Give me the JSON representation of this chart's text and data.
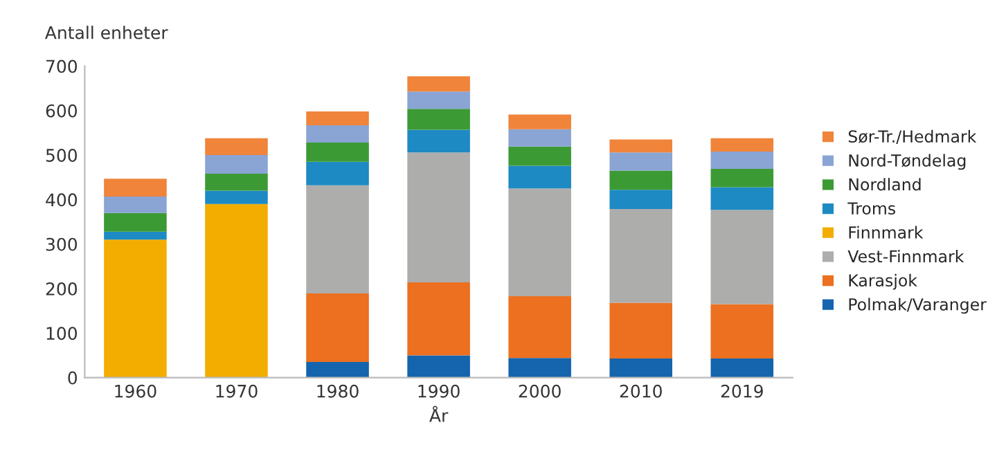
{
  "chart_data": {
    "type": "bar",
    "stacked": true,
    "xlabel": "År",
    "ylabel": "Antall enheter",
    "categories": [
      "1960",
      "1970",
      "1980",
      "1990",
      "2000",
      "2010",
      "2019"
    ],
    "series": [
      {
        "name": "Polmak/Varanger",
        "color": "#1464ae",
        "values": [
          null,
          null,
          35,
          50,
          44,
          43,
          43
        ]
      },
      {
        "name": "Karasjok",
        "color": "#ec7020",
        "values": [
          null,
          null,
          154,
          164,
          139,
          125,
          122
        ]
      },
      {
        "name": "Vest-Finnmark",
        "color": "#adadab",
        "values": [
          null,
          null,
          243,
          292,
          242,
          211,
          212
        ]
      },
      {
        "name": "Finnmark",
        "color": "#f2ad00",
        "values": [
          310,
          390,
          null,
          null,
          null,
          null,
          null
        ]
      },
      {
        "name": "Troms",
        "color": "#1d8ac4",
        "values": [
          18,
          30,
          53,
          51,
          51,
          43,
          51
        ]
      },
      {
        "name": "Nordland",
        "color": "#3c9a35",
        "values": [
          42,
          38,
          43,
          47,
          43,
          43,
          41
        ]
      },
      {
        "name": "Nord-Tøndelag",
        "color": "#8aa4d4",
        "values": [
          37,
          42,
          39,
          39,
          39,
          41,
          39
        ]
      },
      {
        "name": "Sør-Tr./Hedmark",
        "color": "#f0843a",
        "values": [
          40,
          38,
          31,
          34,
          33,
          29,
          30
        ]
      }
    ],
    "ylim": [
      0,
      700
    ],
    "yticks": [
      0,
      100,
      200,
      300,
      400,
      500,
      600,
      700
    ],
    "grid": false,
    "legend": "right"
  }
}
